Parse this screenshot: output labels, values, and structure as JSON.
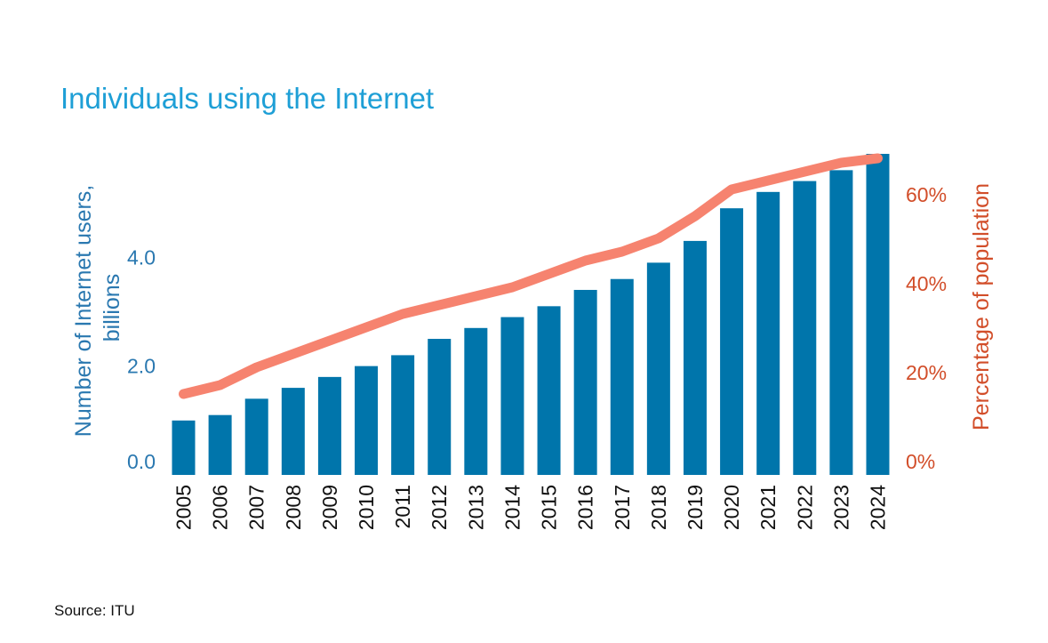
{
  "title": "Individuals using the Internet",
  "source": "Source: ITU",
  "colors": {
    "title": "#1e9fd6",
    "bar": "#0075ab",
    "left_axis": "#2a78b0",
    "line": "#f6836f",
    "right_axis": "#d24e2a",
    "year_label": "#111111"
  },
  "chart_data": {
    "type": "bar",
    "categories": [
      "2005",
      "2006",
      "2007",
      "2008",
      "2009",
      "2010",
      "2011",
      "2012",
      "2013",
      "2014",
      "2015",
      "2016",
      "2017",
      "2018",
      "2019",
      "2020",
      "2021",
      "2022",
      "2023",
      "2024"
    ],
    "series": [
      {
        "axis": "left",
        "chart_type": "bar",
        "values": [
          1.0,
          1.1,
          1.4,
          1.6,
          1.8,
          2.0,
          2.2,
          2.5,
          2.7,
          2.9,
          3.1,
          3.4,
          3.6,
          3.9,
          4.3,
          4.9,
          5.2,
          5.4,
          5.6,
          5.9
        ]
      },
      {
        "axis": "right",
        "chart_type": "line",
        "values": [
          15,
          17,
          21,
          24,
          27,
          30,
          33,
          35,
          37,
          39,
          42,
          45,
          47,
          50,
          55,
          61,
          63,
          65,
          67,
          68
        ]
      }
    ],
    "ylabel": "Number of Internet users, billions",
    "ylabel_lines": [
      "Number of Internet users,",
      "billions"
    ],
    "y2label": "Percentage of population",
    "yticks": [
      {
        "value": 0,
        "label": "0.0"
      },
      {
        "value": 2,
        "label": "2.0"
      },
      {
        "value": 4,
        "label": "4.0"
      }
    ],
    "y2ticks": [
      {
        "value": 0,
        "label": "0%"
      },
      {
        "value": 20,
        "label": "20%"
      },
      {
        "value": 40,
        "label": "40%"
      },
      {
        "value": 60,
        "label": "60%"
      }
    ],
    "ylim": [
      0,
      5.9
    ],
    "y2lim": [
      0,
      68
    ],
    "grid": false,
    "legend": "none"
  }
}
